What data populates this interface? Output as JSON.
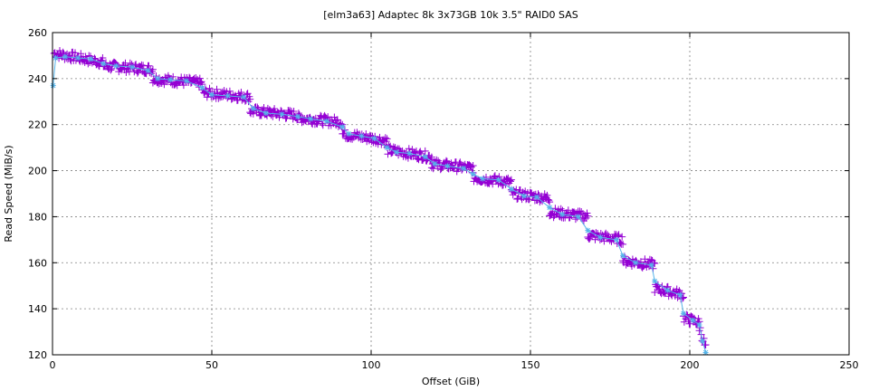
{
  "chart_data": {
    "type": "scatter",
    "title": "[elm3a63] Adaptec 8k 3x73GB 10k 3.5\" RAID0 SAS",
    "xlabel": "Offset (GiB)",
    "ylabel": "Read Speed (MiB/s)",
    "xlim": [
      0,
      250
    ],
    "ylim": [
      120,
      260
    ],
    "xticks": [
      "0",
      "50",
      "100",
      "150",
      "200",
      "250"
    ],
    "yticks": [
      "120",
      "140",
      "160",
      "180",
      "200",
      "220",
      "240",
      "260"
    ],
    "grid": true,
    "legend": "none",
    "series": [
      {
        "marker": "plus",
        "color": "#9400d3",
        "steps": [
          {
            "x": [
              0.5,
              16
            ],
            "y": [
              251,
              247
            ]
          },
          {
            "x": [
              16,
              31.5
            ],
            "y": [
              245.5,
              244
            ]
          },
          {
            "x": [
              31.5,
              47
            ],
            "y": [
              240,
              238
            ]
          },
          {
            "x": [
              47,
              62
            ],
            "y": [
              234,
              232
            ]
          },
          {
            "x": [
              62,
              77
            ],
            "y": [
              226,
              224
            ]
          },
          {
            "x": [
              77,
              91
            ],
            "y": [
              223,
              221
            ]
          },
          {
            "x": [
              91,
              105
            ],
            "y": [
              216,
              213
            ]
          },
          {
            "x": [
              105,
              119
            ],
            "y": [
              209,
              206
            ]
          },
          {
            "x": [
              119,
              132
            ],
            "y": [
              203,
              201
            ]
          },
          {
            "x": [
              132,
              144
            ],
            "y": [
              197,
              195
            ]
          },
          {
            "x": [
              144,
              156
            ],
            "y": [
              190,
              188
            ]
          },
          {
            "x": [
              156,
              168
            ],
            "y": [
              182,
              180
            ]
          },
          {
            "x": [
              168,
              179
            ],
            "y": [
              172,
              170
            ]
          },
          {
            "x": [
              179,
              189
            ],
            "y": [
              161,
              159
            ]
          },
          {
            "x": [
              189,
              198
            ],
            "y": [
              149,
              146
            ]
          },
          {
            "x": [
              198,
              203
            ],
            "y": [
              136,
              134
            ]
          },
          {
            "x": [
              203,
              205
            ],
            "y": [
              132,
              123
            ]
          }
        ]
      },
      {
        "marker": "star",
        "color": "#56b4e9",
        "points": [
          [
            0.2,
            237
          ],
          [
            1,
            249
          ],
          [
            4,
            249.5
          ],
          [
            8,
            249
          ],
          [
            12,
            248.5
          ],
          [
            16,
            246.5
          ],
          [
            20,
            245.5
          ],
          [
            25,
            245
          ],
          [
            30,
            243.5
          ],
          [
            33,
            240
          ],
          [
            37,
            239.5
          ],
          [
            42,
            239
          ],
          [
            47,
            236
          ],
          [
            50,
            233
          ],
          [
            55,
            232.5
          ],
          [
            60,
            232
          ],
          [
            63,
            227
          ],
          [
            67,
            225
          ],
          [
            72,
            224.5
          ],
          [
            77,
            223.5
          ],
          [
            81,
            222.5
          ],
          [
            86,
            221.5
          ],
          [
            91,
            219
          ],
          [
            93,
            216
          ],
          [
            97,
            215
          ],
          [
            101,
            214
          ],
          [
            105,
            210
          ],
          [
            108,
            208
          ],
          [
            112,
            207.5
          ],
          [
            117,
            206
          ],
          [
            120,
            203
          ],
          [
            124,
            202
          ],
          [
            129,
            201
          ],
          [
            132,
            198.5
          ],
          [
            135,
            196.5
          ],
          [
            140,
            196
          ],
          [
            144,
            192
          ],
          [
            148,
            189
          ],
          [
            152,
            188.5
          ],
          [
            156,
            184
          ],
          [
            160,
            181
          ],
          [
            165,
            180
          ],
          [
            168,
            174
          ],
          [
            172,
            171
          ],
          [
            177,
            170
          ],
          [
            179,
            163
          ],
          [
            183,
            160
          ],
          [
            188,
            159
          ],
          [
            189,
            152
          ],
          [
            193,
            148
          ],
          [
            197,
            146
          ],
          [
            198,
            138
          ],
          [
            201,
            135
          ],
          [
            203,
            133
          ],
          [
            204,
            126
          ],
          [
            205,
            121
          ]
        ]
      }
    ]
  }
}
